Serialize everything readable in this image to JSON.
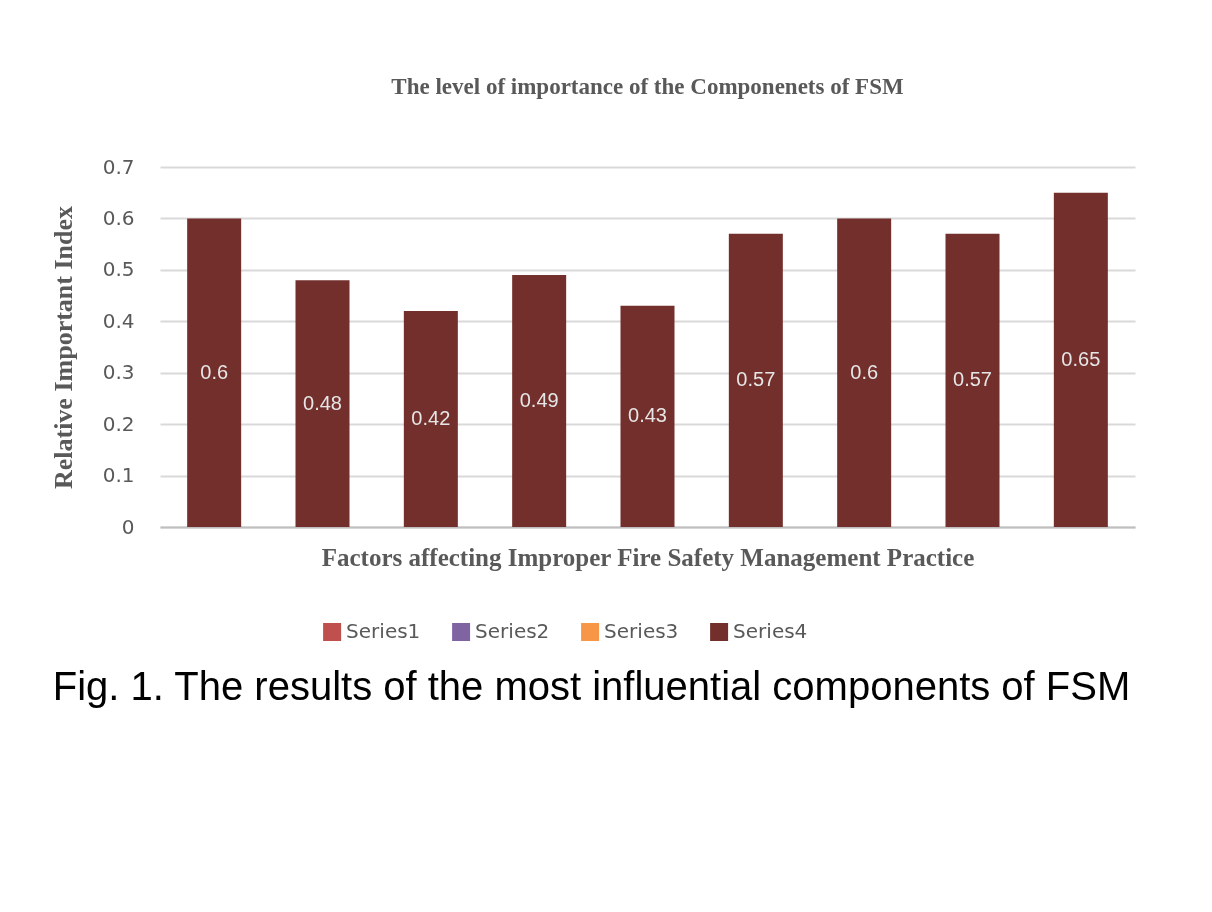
{
  "chart_data": {
    "type": "bar",
    "title": "The level of importance of the Componenets of FSM",
    "xlabel": "Factors affecting Improper Fire Safety Management Practice",
    "ylabel": "Relative Important Index",
    "categories": [
      null,
      null,
      null,
      null,
      null,
      null,
      null,
      null,
      null
    ],
    "series": [
      {
        "name": "Series1",
        "color": "#c0504d",
        "values": [
          null,
          null,
          null,
          null,
          null,
          null,
          null,
          null,
          null
        ]
      },
      {
        "name": "Series2",
        "color": "#8064a2",
        "values": [
          null,
          null,
          null,
          null,
          null,
          null,
          null,
          null,
          null
        ]
      },
      {
        "name": "Series3",
        "color": "#f79646",
        "values": [
          null,
          null,
          null,
          null,
          null,
          null,
          null,
          null,
          null
        ]
      },
      {
        "name": "Series4",
        "color": "#722f2c",
        "values": [
          0.6,
          0.48,
          0.42,
          0.49,
          0.43,
          0.57,
          0.6,
          0.57,
          0.65
        ]
      }
    ],
    "ylim": [
      0,
      0.7
    ],
    "yticks": [
      0,
      0.1,
      0.2,
      0.3,
      0.4,
      0.5,
      0.6,
      0.7
    ],
    "grid": "y",
    "legend": "bottom",
    "tick_labels": "y",
    "data_labels": true,
    "annotations": [
      "Fig. 1. The results of the most influential components of FSM"
    ]
  }
}
